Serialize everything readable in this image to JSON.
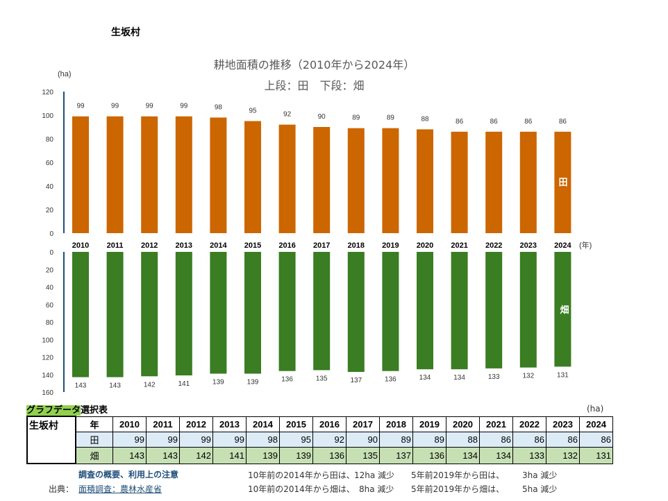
{
  "village": "生坂村",
  "chart_data": [
    {
      "type": "bar",
      "title": "耕地面積の推移（2010年から2024年）",
      "subtitle": "上段：田　下段：畑",
      "ylabel": "(ha)",
      "xlabel": "(年)",
      "series_label": "田",
      "color": "#cc6600",
      "ylim": [
        0,
        120
      ],
      "yticks": [
        0,
        20,
        40,
        60,
        80,
        100,
        120
      ],
      "categories": [
        "2010",
        "2011",
        "2012",
        "2013",
        "2014",
        "2015",
        "2016",
        "2017",
        "2018",
        "2019",
        "2020",
        "2021",
        "2022",
        "2023",
        "2024"
      ],
      "values": [
        99,
        99,
        99,
        99,
        98,
        95,
        92,
        90,
        89,
        89,
        88,
        86,
        86,
        86,
        86
      ]
    },
    {
      "type": "bar",
      "series_label": "畑",
      "color": "#3a7d22",
      "ylim": [
        0,
        160
      ],
      "inverted": true,
      "yticks": [
        0,
        20,
        40,
        60,
        80,
        100,
        120,
        140,
        160
      ],
      "categories": [
        "2010",
        "2011",
        "2012",
        "2013",
        "2014",
        "2015",
        "2016",
        "2017",
        "2018",
        "2019",
        "2020",
        "2021",
        "2022",
        "2023",
        "2024"
      ],
      "values": [
        143,
        143,
        142,
        141,
        139,
        139,
        136,
        135,
        137,
        136,
        134,
        134,
        133,
        132,
        131
      ]
    }
  ],
  "table": {
    "title_hl": "グラフデータ",
    "title_rest": "選択表",
    "unit": "(ha)",
    "year_label": "年",
    "rice_label": "田",
    "field_label": "畑"
  },
  "notes": {
    "link": "調査の概要、利用上の注意",
    "source_label": "出典：",
    "source_link": "面積調査：農林水産省",
    "rice10": "10年前の2014年から田は、",
    "rice10v": "12ha 減少",
    "rice5": "5年前2019年から田は、",
    "rice5v": "3ha 減少",
    "field10": "10年前の2014年から畑は、",
    "field10v": "8ha 減少",
    "field5": "5年前2019年から畑は、",
    "field5v": "5ha 減少"
  }
}
